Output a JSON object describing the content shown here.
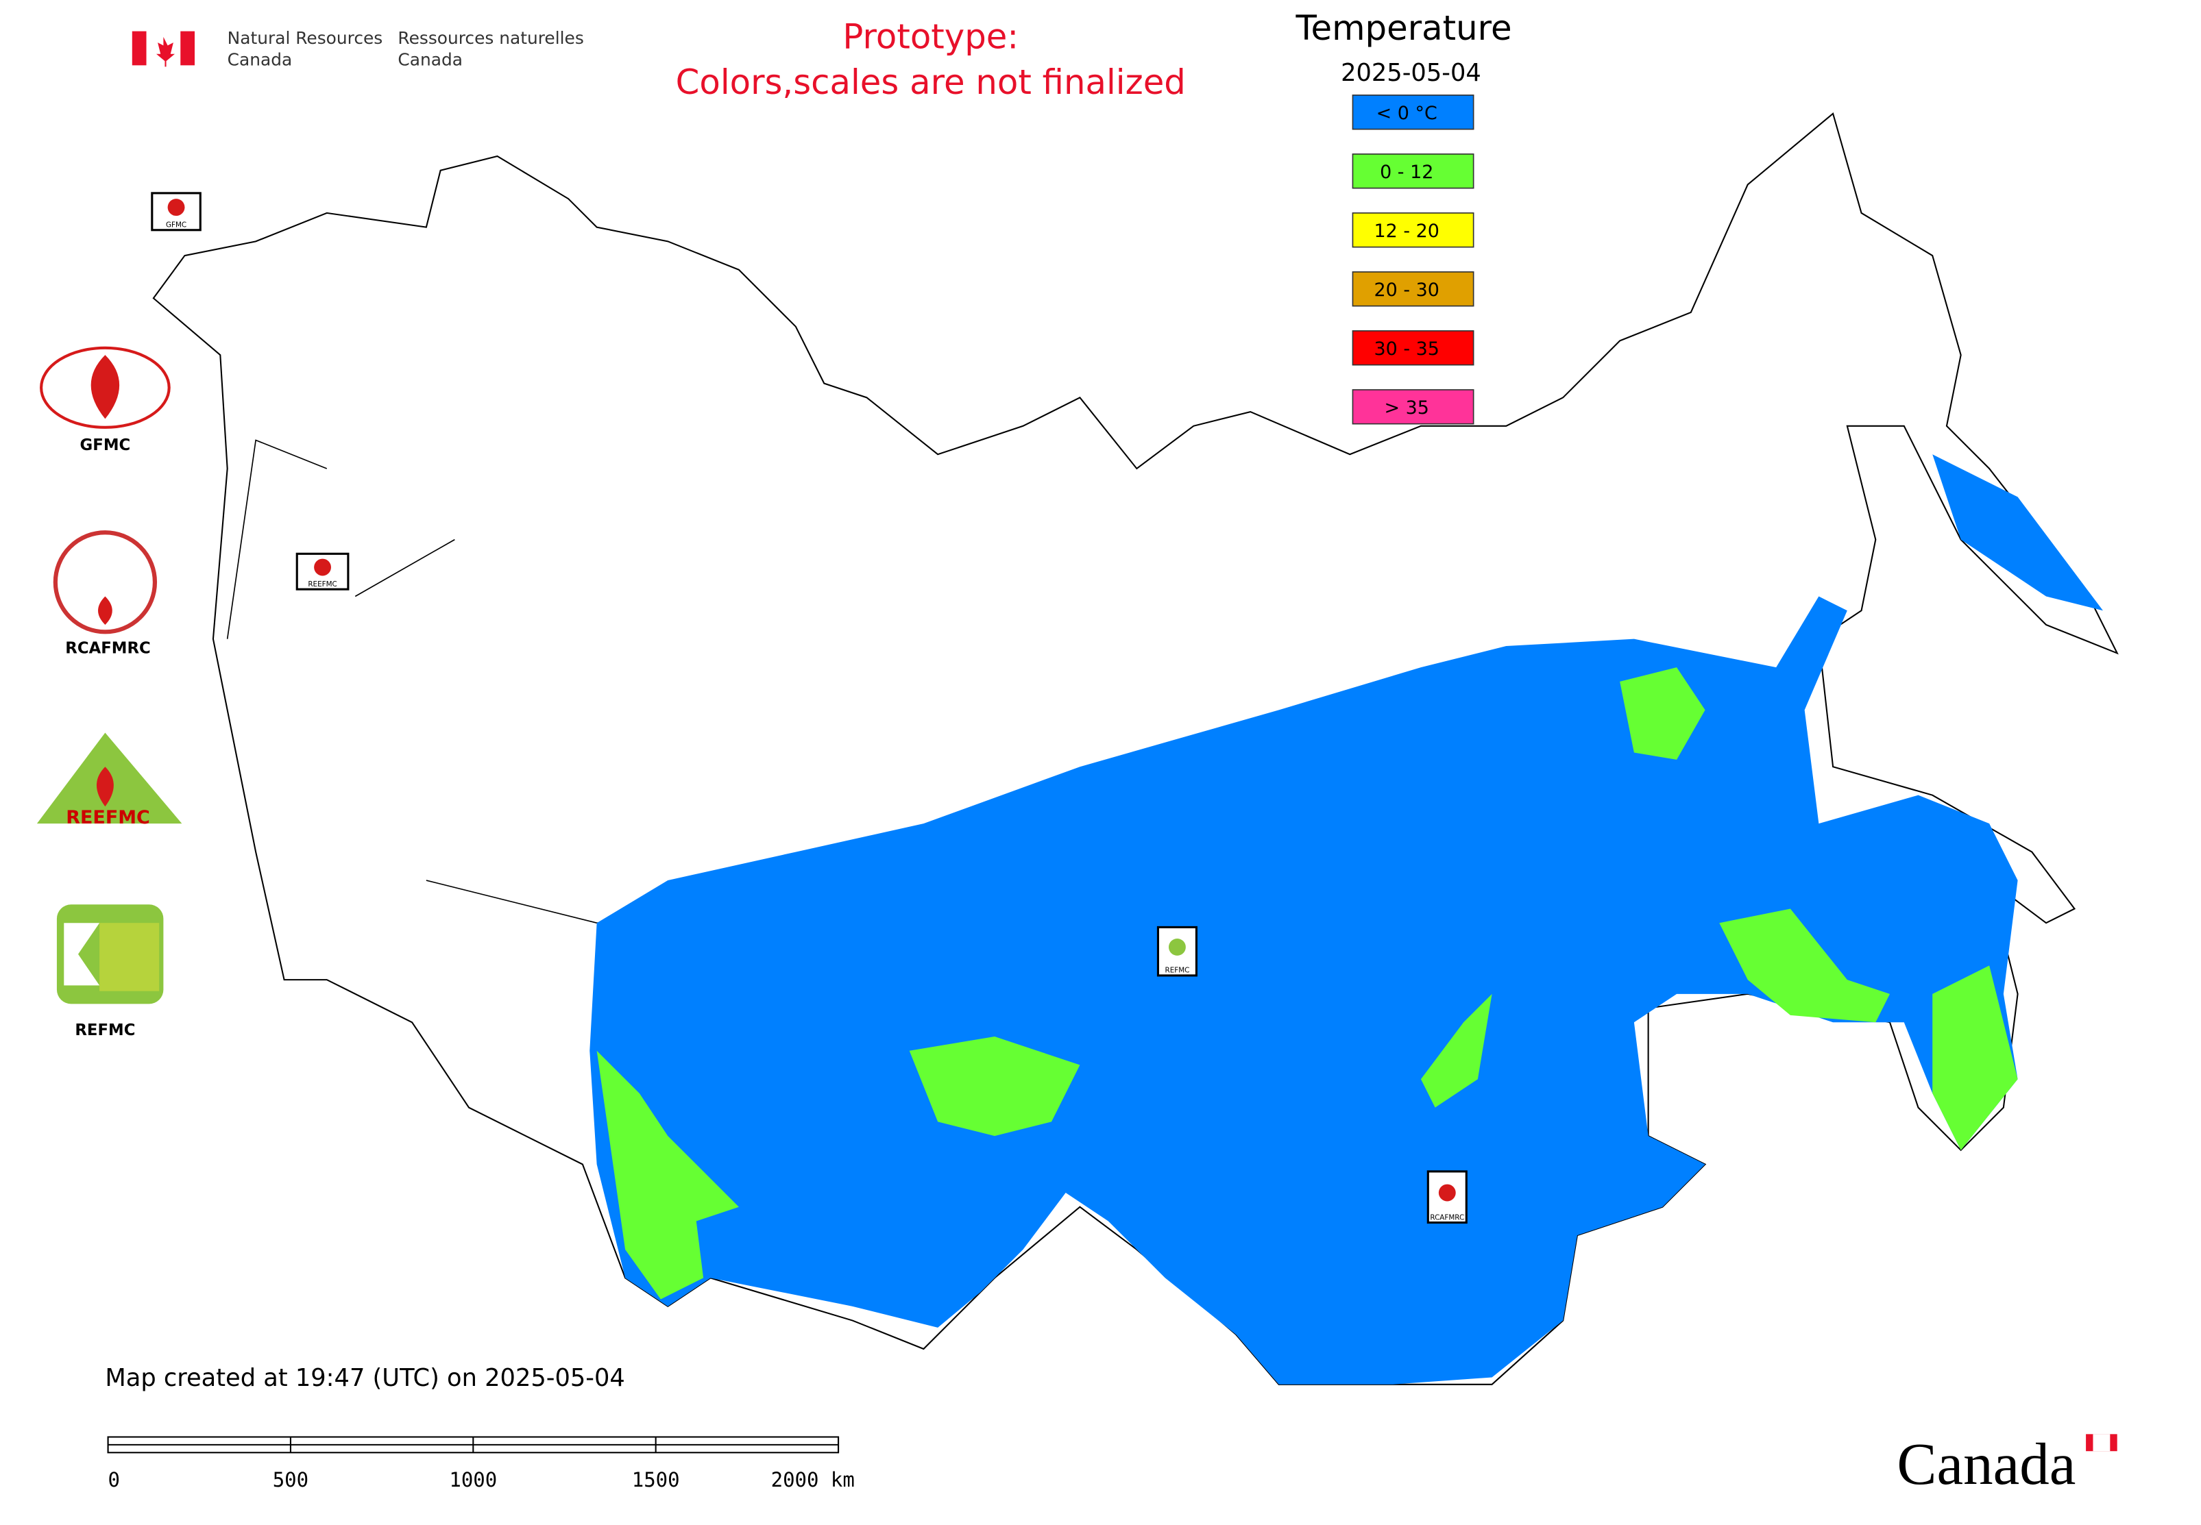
{
  "header": {
    "en_line1": "Natural Resources",
    "en_line2": "Canada",
    "fr_line1": "Ressources naturelles",
    "fr_line2": "Canada"
  },
  "notice": {
    "line1": "Prototype:",
    "line2": "Colors,scales are not finalized"
  },
  "legend": {
    "title": "Temperature",
    "date": "2025-05-04",
    "items": [
      {
        "label": "< 0 °C",
        "color": "#0080ff"
      },
      {
        "label": "0 - 12",
        "color": "#66ff33"
      },
      {
        "label": "12 - 20",
        "color": "#ffff00"
      },
      {
        "label": "20 - 30",
        "color": "#e0a000"
      },
      {
        "label": "30 - 35",
        "color": "#ff0000"
      },
      {
        "label": "> 35",
        "color": "#ff3399"
      }
    ]
  },
  "logos": [
    "GFMC",
    "RCAFMRC",
    "REEFMC",
    "REFMC"
  ],
  "map_markers": [
    "GFMC",
    "REEFMC",
    "REFMC",
    "RCAFMRC"
  ],
  "footer": {
    "created": "Map created at 19:47 (UTC) on 2025-05-04",
    "wordmark": "Canada"
  },
  "scale_bar": {
    "labels": [
      "0",
      "500",
      "1000",
      "1500",
      "2000 km"
    ]
  }
}
